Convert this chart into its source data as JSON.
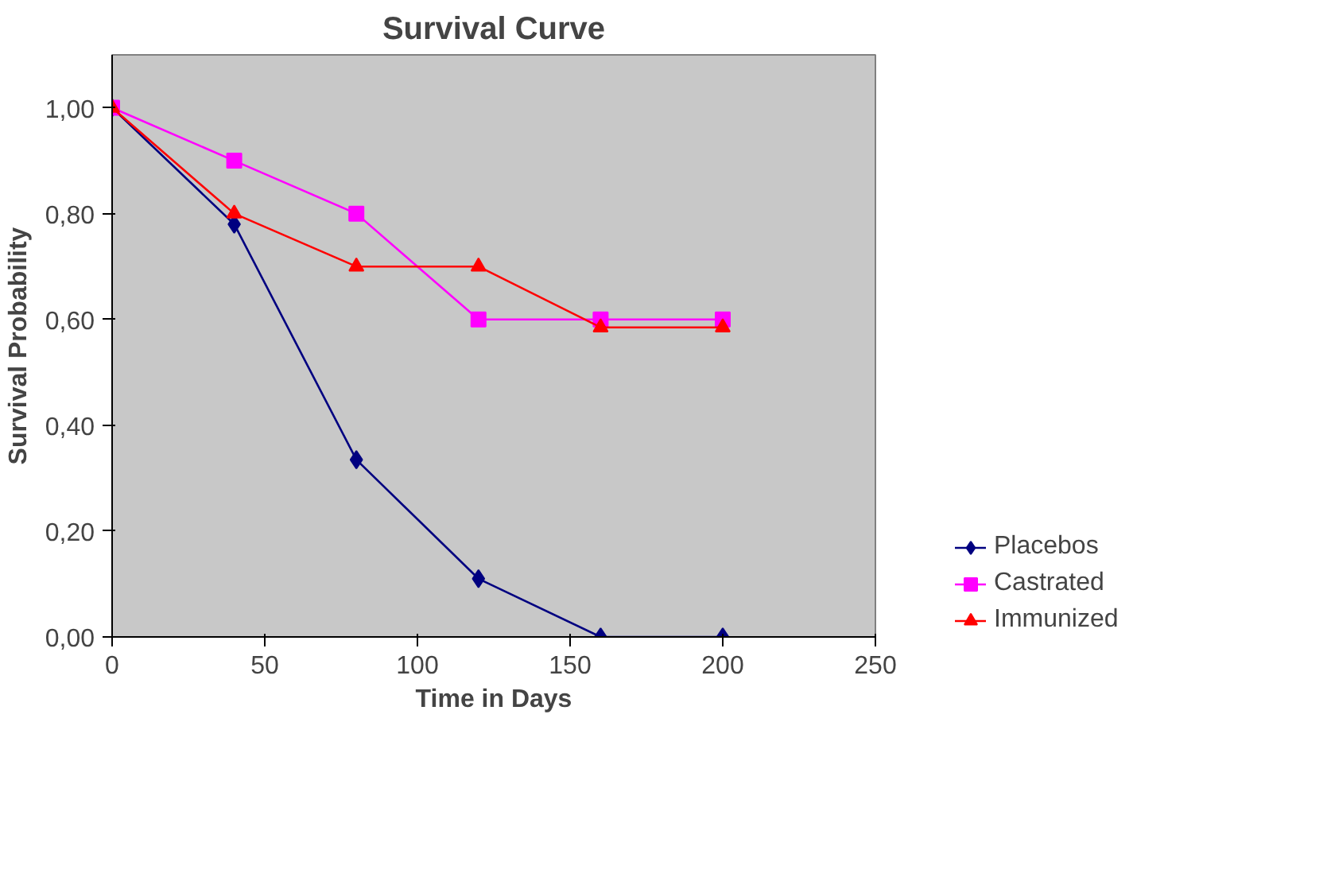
{
  "chart_data": {
    "type": "line",
    "title": "Survival Curve",
    "xlabel": "Time in Days",
    "ylabel": "Survival Probability",
    "x": [
      0,
      40,
      80,
      120,
      160,
      200
    ],
    "series": [
      {
        "name": "Placebos",
        "color": "#000080",
        "marker": "diamond",
        "values": [
          1.0,
          0.78,
          0.335,
          0.11,
          0.0,
          0.0
        ]
      },
      {
        "name": "Castrated",
        "color": "#ff00ff",
        "marker": "square",
        "values": [
          1.0,
          0.9,
          0.8,
          0.6,
          0.6,
          0.6
        ]
      },
      {
        "name": "Immunized",
        "color": "#ff0000",
        "marker": "triangle",
        "values": [
          1.0,
          0.8,
          0.7,
          0.7,
          0.585,
          0.585
        ]
      }
    ],
    "xlim": [
      0,
      250
    ],
    "xticks": [
      0,
      50,
      100,
      150,
      200,
      250
    ],
    "ylim": [
      0,
      1.1
    ],
    "yticks": [
      {
        "value": 0,
        "label": "0,00"
      },
      {
        "value": 0.2,
        "label": "0,20"
      },
      {
        "value": 0.4,
        "label": "0,40"
      },
      {
        "value": 0.6,
        "label": "0,60"
      },
      {
        "value": 0.8,
        "label": "0,80"
      },
      {
        "value": 1.0,
        "label": "1,00"
      }
    ],
    "grid": false,
    "legend": "right",
    "line_style": "solid"
  }
}
